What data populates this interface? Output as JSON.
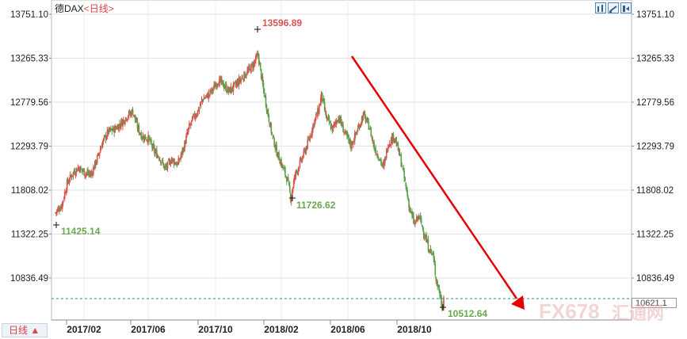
{
  "title": {
    "name": "德DAX",
    "timeframe": "<日线>"
  },
  "timeframe_button": "日线 ▲",
  "current_price_label": "10621.1",
  "watermark": {
    "brand": "FX678",
    "cn": "汇通网"
  },
  "colors": {
    "up": "#d9534f",
    "down": "#5aa04a",
    "arrow": "#e60000",
    "high_ann": "#d9534f",
    "low_ann": "#6aa84f"
  },
  "chart_data": {
    "type": "candlestick",
    "title": "德DAX <日线>",
    "y_ticks": [
      "13751.10",
      "13265.33",
      "12779.56",
      "12293.79",
      "11808.02",
      "11322.25",
      "10836.49"
    ],
    "ylim": [
      10513,
      13850
    ],
    "x_ticks": [
      "2017/02",
      "2017/06",
      "2017/10",
      "2018/02",
      "2018/06",
      "2018/10"
    ],
    "annotations": [
      {
        "label": "13596.89",
        "kind": "high"
      },
      {
        "label": "11726.62",
        "kind": "low"
      },
      {
        "label": "11425.14",
        "kind": "low"
      },
      {
        "label": "10512.64",
        "kind": "low"
      }
    ],
    "close_path": [
      [
        0,
        11560
      ],
      [
        8,
        11640
      ],
      [
        15,
        11880
      ],
      [
        22,
        11990
      ],
      [
        30,
        12060
      ],
      [
        38,
        12000
      ],
      [
        46,
        11980
      ],
      [
        55,
        12180
      ],
      [
        60,
        12320
      ],
      [
        68,
        12450
      ],
      [
        76,
        12480
      ],
      [
        84,
        12540
      ],
      [
        92,
        12620
      ],
      [
        100,
        12680
      ],
      [
        106,
        12500
      ],
      [
        112,
        12400
      ],
      [
        120,
        12380
      ],
      [
        128,
        12230
      ],
      [
        134,
        12180
      ],
      [
        142,
        12040
      ],
      [
        150,
        12150
      ],
      [
        158,
        12090
      ],
      [
        166,
        12280
      ],
      [
        172,
        12480
      ],
      [
        178,
        12600
      ],
      [
        184,
        12680
      ],
      [
        190,
        12810
      ],
      [
        198,
        12860
      ],
      [
        205,
        12940
      ],
      [
        210,
        13020
      ],
      [
        216,
        12980
      ],
      [
        224,
        12900
      ],
      [
        232,
        12960
      ],
      [
        240,
        13040
      ],
      [
        248,
        13110
      ],
      [
        256,
        13200
      ],
      [
        262,
        13300
      ],
      [
        268,
        12960
      ],
      [
        274,
        12680
      ],
      [
        280,
        12420
      ],
      [
        286,
        12230
      ],
      [
        292,
        12100
      ],
      [
        300,
        11920
      ],
      [
        304,
        11726
      ],
      [
        310,
        11980
      ],
      [
        318,
        12140
      ],
      [
        326,
        12320
      ],
      [
        334,
        12550
      ],
      [
        340,
        12690
      ],
      [
        344,
        12860
      ],
      [
        350,
        12610
      ],
      [
        358,
        12480
      ],
      [
        366,
        12620
      ],
      [
        374,
        12440
      ],
      [
        382,
        12300
      ],
      [
        390,
        12460
      ],
      [
        398,
        12640
      ],
      [
        406,
        12500
      ],
      [
        412,
        12280
      ],
      [
        418,
        12180
      ],
      [
        424,
        12050
      ],
      [
        430,
        12320
      ],
      [
        438,
        12410
      ],
      [
        446,
        12160
      ],
      [
        452,
        11890
      ],
      [
        458,
        11600
      ],
      [
        464,
        11430
      ],
      [
        470,
        11520
      ],
      [
        476,
        11350
      ],
      [
        482,
        11180
      ],
      [
        488,
        11090
      ],
      [
        492,
        10830
      ],
      [
        496,
        10700
      ],
      [
        500,
        10513
      ],
      [
        502,
        10621
      ]
    ]
  }
}
